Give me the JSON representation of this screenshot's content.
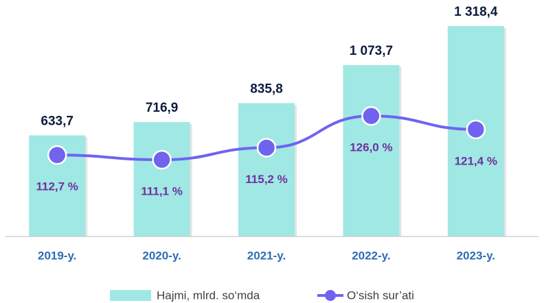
{
  "chart_data": {
    "type": "bar-line",
    "categories": [
      "2019-y.",
      "2020-y.",
      "2021-y.",
      "2022-y.",
      "2023-y."
    ],
    "series": [
      {
        "name": "Hajmi, mlrd. so‘mda",
        "type": "bar",
        "color": "#a0e8e3",
        "values": [
          633.7,
          716.9,
          835.8,
          1073.7,
          1318.4
        ],
        "value_labels": [
          "633,7",
          "716,9",
          "835,8",
          "1 073,7",
          "1 318,4"
        ]
      },
      {
        "name": "O‘sish sur’ati",
        "type": "line",
        "axis": "y2",
        "color": "#6f63f0",
        "values": [
          112.7,
          111.1,
          115.2,
          126.0,
          121.4
        ],
        "value_labels": [
          "112,7 %",
          "111,1 %",
          "115,2 %",
          "126,0 %",
          "121,4 %"
        ]
      }
    ],
    "ylim": [
      0,
      1400
    ],
    "y2lim": [
      85,
      161
    ]
  }
}
